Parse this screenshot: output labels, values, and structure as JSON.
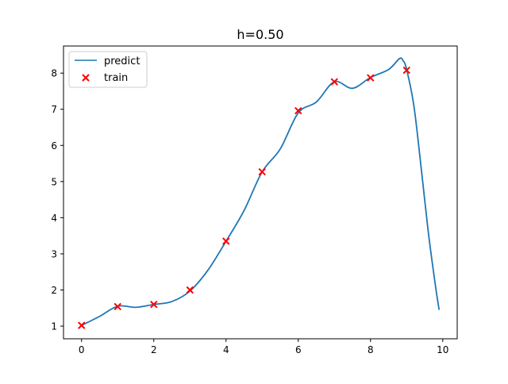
{
  "chart_data": {
    "type": "line",
    "title": "h=0.50",
    "xlabel": "",
    "ylabel": "",
    "xlim": [
      -0.5,
      10.4
    ],
    "ylim": [
      0.65,
      8.75
    ],
    "xticks": [
      0,
      2,
      4,
      6,
      8,
      10
    ],
    "yticks": [
      1,
      2,
      3,
      4,
      5,
      6,
      7,
      8
    ],
    "grid": false,
    "legend": "top-left",
    "series": [
      {
        "name": "predict",
        "kind": "line",
        "color": "#1f77b4",
        "x": [
          0,
          0.5,
          1,
          1.5,
          2,
          2.5,
          3,
          3.5,
          4,
          4.5,
          5,
          5.5,
          6,
          6.5,
          7,
          7.5,
          8,
          8.5,
          8.8,
          8.9,
          9,
          9.2,
          9.4,
          9.6,
          9.8,
          9.9
        ],
        "y": [
          1.02,
          1.27,
          1.55,
          1.52,
          1.6,
          1.68,
          1.97,
          2.55,
          3.35,
          4.2,
          5.27,
          5.9,
          6.9,
          7.2,
          7.76,
          7.58,
          7.88,
          8.1,
          8.4,
          8.35,
          8.1,
          7.1,
          5.4,
          3.6,
          2.1,
          1.45
        ]
      },
      {
        "name": "train",
        "kind": "scatter",
        "marker": "x",
        "color": "#ff0000",
        "x": [
          0,
          1,
          2,
          3,
          4,
          5,
          6,
          7,
          8,
          9
        ],
        "y": [
          1.02,
          1.54,
          1.6,
          2.0,
          3.35,
          5.27,
          6.96,
          7.76,
          7.87,
          8.08
        ]
      }
    ]
  }
}
